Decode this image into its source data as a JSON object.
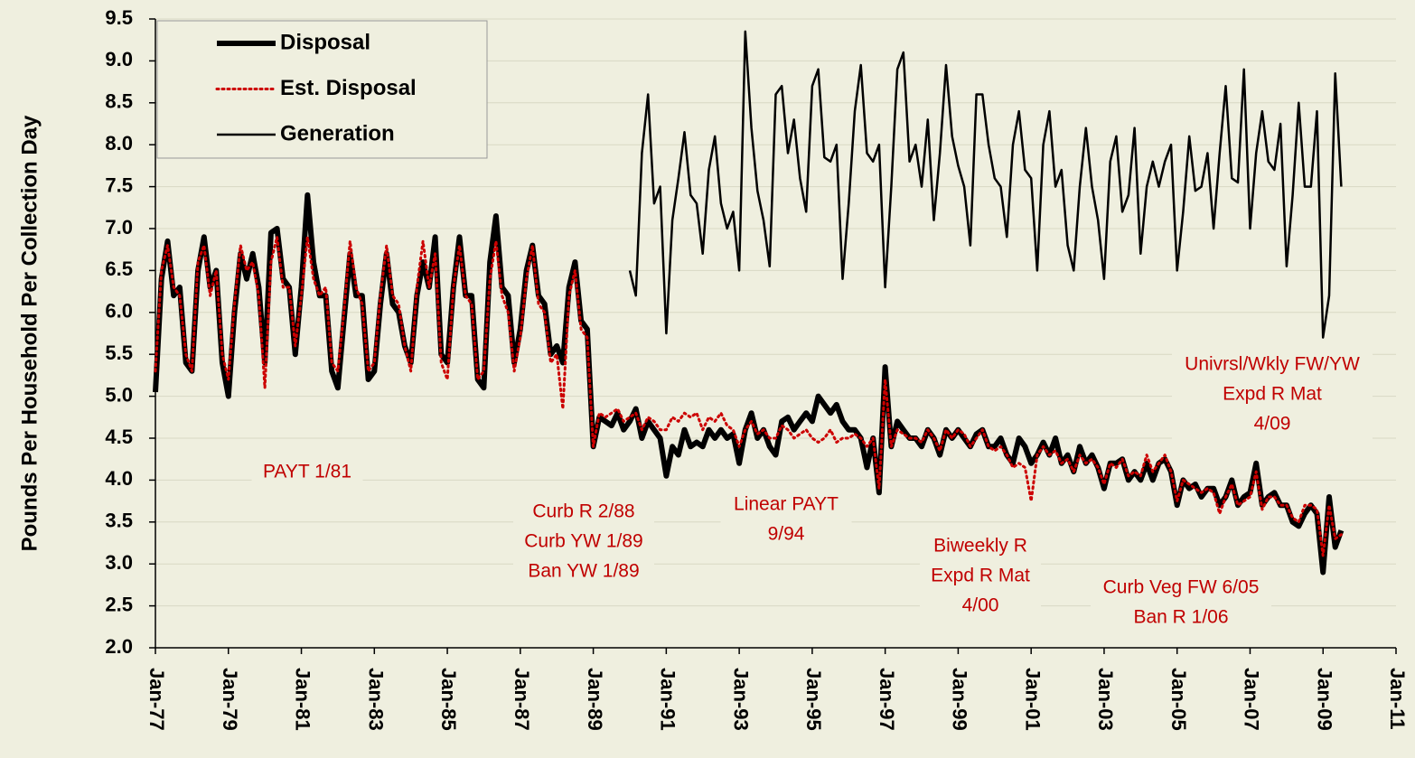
{
  "chart_data": {
    "type": "line",
    "y_label": "Pounds Per Household Per Collection Day",
    "xlim": [
      "1977-01",
      "2011-01"
    ],
    "xticks": [
      {
        "value": "1977-01",
        "label": "Jan-77"
      },
      {
        "value": "1979-01",
        "label": "Jan-79"
      },
      {
        "value": "1981-01",
        "label": "Jan-81"
      },
      {
        "value": "1983-01",
        "label": "Jan-83"
      },
      {
        "value": "1985-01",
        "label": "Jan-85"
      },
      {
        "value": "1987-01",
        "label": "Jan-87"
      },
      {
        "value": "1989-01",
        "label": "Jan-89"
      },
      {
        "value": "1991-01",
        "label": "Jan-91"
      },
      {
        "value": "1993-01",
        "label": "Jan-93"
      },
      {
        "value": "1995-01",
        "label": "Jan-95"
      },
      {
        "value": "1997-01",
        "label": "Jan-97"
      },
      {
        "value": "1999-01",
        "label": "Jan-99"
      },
      {
        "value": "2001-01",
        "label": "Jan-01"
      },
      {
        "value": "2003-01",
        "label": "Jan-03"
      },
      {
        "value": "2005-01",
        "label": "Jan-05"
      },
      {
        "value": "2007-01",
        "label": "Jan-07"
      },
      {
        "value": "2009-01",
        "label": "Jan-09"
      },
      {
        "value": "2011-01",
        "label": "Jan-11"
      }
    ],
    "ylim": [
      2.0,
      9.5
    ],
    "yticks": [
      {
        "value": 2,
        "label": "2.0"
      },
      2.5,
      {
        "value": 3,
        "label": "3.0"
      },
      3.5,
      {
        "value": 4,
        "label": "4.0"
      },
      4.5,
      {
        "value": 5,
        "label": "5.0"
      },
      5.5,
      {
        "value": 6,
        "label": "6.0"
      },
      6.5,
      {
        "value": 7,
        "label": "7.0"
      },
      7.5,
      {
        "value": 8,
        "label": "8.0"
      },
      8.5,
      {
        "value": 9,
        "label": "9.0"
      },
      9.5
    ],
    "grid": true,
    "legend": "upper left",
    "x": [
      "1977-01",
      "1977-03",
      "1977-05",
      "1977-07",
      "1977-09",
      "1977-11",
      "1978-01",
      "1978-03",
      "1978-05",
      "1978-07",
      "1978-09",
      "1978-11",
      "1979-01",
      "1979-03",
      "1979-05",
      "1979-07",
      "1979-09",
      "1979-11",
      "1980-01",
      "1980-03",
      "1980-05",
      "1980-07",
      "1980-09",
      "1980-11",
      "1981-01",
      "1981-03",
      "1981-05",
      "1981-07",
      "1981-09",
      "1981-11",
      "1982-01",
      "1982-03",
      "1982-05",
      "1982-07",
      "1982-09",
      "1982-11",
      "1983-01",
      "1983-03",
      "1983-05",
      "1983-07",
      "1983-09",
      "1983-11",
      "1984-01",
      "1984-03",
      "1984-05",
      "1984-07",
      "1984-09",
      "1984-11",
      "1985-01",
      "1985-03",
      "1985-05",
      "1985-07",
      "1985-09",
      "1985-11",
      "1986-01",
      "1986-03",
      "1986-05",
      "1986-07",
      "1986-09",
      "1986-11",
      "1987-01",
      "1987-03",
      "1987-05",
      "1987-07",
      "1987-09",
      "1987-11",
      "1988-01",
      "1988-03",
      "1988-05",
      "1988-07",
      "1988-09",
      "1988-11",
      "1989-01",
      "1989-03",
      "1989-05",
      "1989-07",
      "1989-09",
      "1989-11",
      "1990-01",
      "1990-03",
      "1990-05",
      "1990-07",
      "1990-09",
      "1990-11",
      "1991-01",
      "1991-03",
      "1991-05",
      "1991-07",
      "1991-09",
      "1991-11",
      "1992-01",
      "1992-03",
      "1992-05",
      "1992-07",
      "1992-09",
      "1992-11",
      "1993-01",
      "1993-03",
      "1993-05",
      "1993-07",
      "1993-09",
      "1993-11",
      "1994-01",
      "1994-03",
      "1994-05",
      "1994-07",
      "1994-09",
      "1994-11",
      "1995-01",
      "1995-03",
      "1995-05",
      "1995-07",
      "1995-09",
      "1995-11",
      "1996-01",
      "1996-03",
      "1996-05",
      "1996-07",
      "1996-09",
      "1996-11",
      "1997-01",
      "1997-03",
      "1997-05",
      "1997-07",
      "1997-09",
      "1997-11",
      "1998-01",
      "1998-03",
      "1998-05",
      "1998-07",
      "1998-09",
      "1998-11",
      "1999-01",
      "1999-03",
      "1999-05",
      "1999-07",
      "1999-09",
      "1999-11",
      "2000-01",
      "2000-03",
      "2000-05",
      "2000-07",
      "2000-09",
      "2000-11",
      "2001-01",
      "2001-03",
      "2001-05",
      "2001-07",
      "2001-09",
      "2001-11",
      "2002-01",
      "2002-03",
      "2002-05",
      "2002-07",
      "2002-09",
      "2002-11",
      "2003-01",
      "2003-03",
      "2003-05",
      "2003-07",
      "2003-09",
      "2003-11",
      "2004-01",
      "2004-03",
      "2004-05",
      "2004-07",
      "2004-09",
      "2004-11",
      "2005-01",
      "2005-03",
      "2005-05",
      "2005-07",
      "2005-09",
      "2005-11",
      "2006-01",
      "2006-03",
      "2006-05",
      "2006-07",
      "2006-09",
      "2006-11",
      "2007-01",
      "2007-03",
      "2007-05",
      "2007-07",
      "2007-09",
      "2007-11",
      "2008-01",
      "2008-03",
      "2008-05",
      "2008-07",
      "2008-09",
      "2008-11",
      "2009-01",
      "2009-03",
      "2009-05",
      "2009-07"
    ],
    "series": [
      {
        "name": "Disposal",
        "color": "#000000",
        "line_width": 6,
        "line_style": "solid",
        "values": [
          5.05,
          6.4,
          6.85,
          6.2,
          6.3,
          5.4,
          5.3,
          6.5,
          6.9,
          6.3,
          6.5,
          5.4,
          5.0,
          6.0,
          6.7,
          6.4,
          6.7,
          6.3,
          5.4,
          6.95,
          7.0,
          6.4,
          6.3,
          5.5,
          6.3,
          7.4,
          6.6,
          6.2,
          6.2,
          5.3,
          5.1,
          5.9,
          6.7,
          6.2,
          6.2,
          5.2,
          5.3,
          6.1,
          6.7,
          6.1,
          6.0,
          5.6,
          5.4,
          6.2,
          6.6,
          6.3,
          6.9,
          5.5,
          5.4,
          6.3,
          6.9,
          6.2,
          6.2,
          5.2,
          5.1,
          6.6,
          7.15,
          6.3,
          6.2,
          5.4,
          5.8,
          6.5,
          6.8,
          6.2,
          6.1,
          5.5,
          5.6,
          5.4,
          6.3,
          6.6,
          5.9,
          5.8,
          4.4,
          4.75,
          4.7,
          4.65,
          4.8,
          4.6,
          4.7,
          4.85,
          4.5,
          4.7,
          4.6,
          4.5,
          4.05,
          4.4,
          4.3,
          4.6,
          4.4,
          4.45,
          4.4,
          4.6,
          4.5,
          4.6,
          4.5,
          4.55,
          4.2,
          4.6,
          4.8,
          4.5,
          4.6,
          4.4,
          4.3,
          4.7,
          4.75,
          4.6,
          4.7,
          4.8,
          4.7,
          5.0,
          4.9,
          4.8,
          4.9,
          4.7,
          4.6,
          4.6,
          4.5,
          4.15,
          4.5,
          3.85,
          5.35,
          4.4,
          4.7,
          4.6,
          4.5,
          4.5,
          4.4,
          4.6,
          4.5,
          4.3,
          4.6,
          4.5,
          4.6,
          4.5,
          4.4,
          4.55,
          4.6,
          4.4,
          4.4,
          4.5,
          4.3,
          4.2,
          4.5,
          4.4,
          4.2,
          4.3,
          4.45,
          4.3,
          4.5,
          4.2,
          4.3,
          4.1,
          4.4,
          4.2,
          4.3,
          4.15,
          3.9,
          4.2,
          4.2,
          4.25,
          4.0,
          4.1,
          4.0,
          4.2,
          4.0,
          4.2,
          4.25,
          4.1,
          3.7,
          4.0,
          3.9,
          3.95,
          3.8,
          3.9,
          3.9,
          3.7,
          3.8,
          4.0,
          3.7,
          3.8,
          3.85,
          4.2,
          3.7,
          3.8,
          3.85,
          3.7,
          3.7,
          3.5,
          3.45,
          3.6,
          3.7,
          3.6,
          2.9,
          3.8,
          3.2,
          3.4
        ]
      },
      {
        "name": "Est. Disposal",
        "color": "#cc0000",
        "line_width": 3,
        "line_style": "dotted",
        "values": [
          5.3,
          6.5,
          6.8,
          6.3,
          6.2,
          5.5,
          5.3,
          6.6,
          6.8,
          6.2,
          6.5,
          5.5,
          5.2,
          6.1,
          6.8,
          6.5,
          6.6,
          6.2,
          5.1,
          6.6,
          6.9,
          6.3,
          6.3,
          5.6,
          6.2,
          6.9,
          6.4,
          6.2,
          6.3,
          5.4,
          5.3,
          6.0,
          6.85,
          6.3,
          6.1,
          5.3,
          5.4,
          6.2,
          6.8,
          6.2,
          6.1,
          5.6,
          5.3,
          6.3,
          6.85,
          6.3,
          6.7,
          5.4,
          5.2,
          6.3,
          6.8,
          6.2,
          6.1,
          5.2,
          5.3,
          6.4,
          6.85,
          6.2,
          6.0,
          5.3,
          5.7,
          6.4,
          6.8,
          6.1,
          6.0,
          5.4,
          5.5,
          4.85,
          6.2,
          6.5,
          5.8,
          5.7,
          4.4,
          4.8,
          4.75,
          4.8,
          4.85,
          4.7,
          4.75,
          4.8,
          4.6,
          4.75,
          4.7,
          4.6,
          4.6,
          4.75,
          4.7,
          4.8,
          4.75,
          4.8,
          4.6,
          4.75,
          4.7,
          4.8,
          4.65,
          4.6,
          4.4,
          4.6,
          4.7,
          4.55,
          4.6,
          4.5,
          4.5,
          4.65,
          4.6,
          4.5,
          4.55,
          4.6,
          4.5,
          4.45,
          4.5,
          4.6,
          4.45,
          4.5,
          4.5,
          4.55,
          4.5,
          4.4,
          4.5,
          3.9,
          5.2,
          4.4,
          4.6,
          4.55,
          4.5,
          4.5,
          4.45,
          4.6,
          4.5,
          4.35,
          4.6,
          4.5,
          4.6,
          4.55,
          4.4,
          4.5,
          4.6,
          4.4,
          4.35,
          4.4,
          4.3,
          4.15,
          4.2,
          4.15,
          3.75,
          4.3,
          4.4,
          4.3,
          4.35,
          4.2,
          4.25,
          4.1,
          4.3,
          4.2,
          4.25,
          4.15,
          3.95,
          4.2,
          4.15,
          4.25,
          4.05,
          4.1,
          4.05,
          4.3,
          4.1,
          4.2,
          4.3,
          4.1,
          3.75,
          4.0,
          3.95,
          3.9,
          3.85,
          3.9,
          3.85,
          3.6,
          3.8,
          3.95,
          3.7,
          3.75,
          3.8,
          4.1,
          3.65,
          3.8,
          3.8,
          3.7,
          3.7,
          3.55,
          3.5,
          3.7,
          3.7,
          3.65,
          3.1,
          3.7,
          3.3,
          3.35
        ]
      },
      {
        "name": "Generation",
        "color": "#000000",
        "line_width": 2.5,
        "line_style": "solid",
        "values": [
          null,
          null,
          null,
          null,
          null,
          null,
          null,
          null,
          null,
          null,
          null,
          null,
          null,
          null,
          null,
          null,
          null,
          null,
          null,
          null,
          null,
          null,
          null,
          null,
          null,
          null,
          null,
          null,
          null,
          null,
          null,
          null,
          null,
          null,
          null,
          null,
          null,
          null,
          null,
          null,
          null,
          null,
          null,
          null,
          null,
          null,
          null,
          null,
          null,
          null,
          null,
          null,
          null,
          null,
          null,
          null,
          null,
          null,
          null,
          null,
          null,
          null,
          null,
          null,
          null,
          null,
          null,
          null,
          null,
          null,
          null,
          null,
          null,
          null,
          null,
          null,
          null,
          null,
          6.5,
          6.2,
          7.9,
          8.6,
          7.3,
          7.5,
          5.75,
          7.1,
          7.6,
          8.15,
          7.4,
          7.3,
          6.7,
          7.7,
          8.1,
          7.3,
          7.0,
          7.2,
          6.5,
          9.35,
          8.2,
          7.45,
          7.1,
          6.55,
          8.6,
          8.7,
          7.9,
          8.3,
          7.6,
          7.2,
          8.7,
          8.9,
          7.85,
          7.8,
          8.0,
          6.4,
          7.3,
          8.4,
          8.95,
          7.9,
          7.8,
          8.0,
          6.3,
          7.5,
          8.9,
          9.1,
          7.8,
          8.0,
          7.5,
          8.3,
          7.1,
          7.9,
          8.95,
          8.1,
          7.75,
          7.5,
          6.8,
          8.6,
          8.6,
          8.0,
          7.6,
          7.5,
          6.9,
          8.0,
          8.4,
          7.7,
          7.6,
          6.5,
          8.0,
          8.4,
          7.5,
          7.7,
          6.8,
          6.5,
          7.5,
          8.2,
          7.5,
          7.1,
          6.4,
          7.8,
          8.1,
          7.2,
          7.4,
          8.2,
          6.7,
          7.5,
          7.8,
          7.5,
          7.8,
          8.0,
          6.5,
          7.2,
          8.1,
          7.45,
          7.5,
          7.9,
          7.0,
          7.9,
          8.7,
          7.6,
          7.55,
          8.9,
          7.0,
          7.9,
          8.4,
          7.8,
          7.7,
          8.25,
          6.55,
          7.4,
          8.5,
          7.5,
          7.5,
          8.4,
          5.7,
          6.2,
          8.85,
          7.5
        ]
      }
    ],
    "annotations": [
      {
        "lines": [
          "PAYT 1/81"
        ]
      },
      {
        "lines": [
          "Curb R 2/88",
          "Curb YW 1/89",
          "Ban YW 1/89"
        ]
      },
      {
        "lines": [
          "Linear PAYT",
          "9/94"
        ]
      },
      {
        "lines": [
          "Biweekly R",
          "Expd R Mat",
          "4/00"
        ]
      },
      {
        "lines": [
          "Curb Veg FW 6/05",
          "Ban R 1/06"
        ]
      },
      {
        "lines": [
          "Univrsl/Wkly FW/YW",
          "Expd R Mat",
          "4/09"
        ]
      }
    ]
  }
}
